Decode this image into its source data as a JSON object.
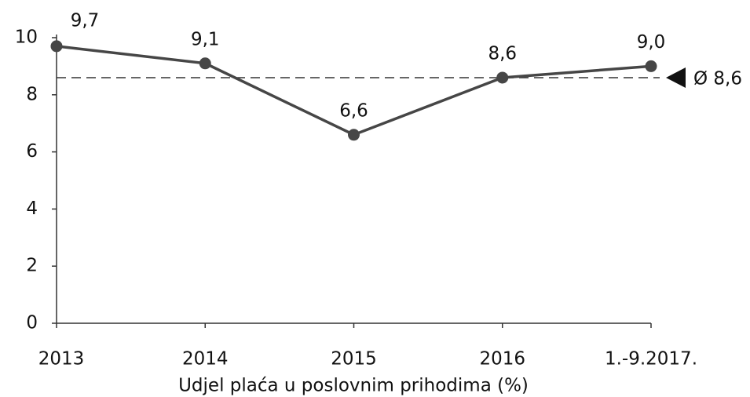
{
  "chart_data": {
    "type": "line",
    "xlabel": "Udjel plaća u poslovnim prihodima (%)",
    "categories": [
      "2013",
      "2014",
      "2015",
      "2016",
      "1.-9.2017."
    ],
    "series": [
      {
        "color": "#464646",
        "values": [
          9.7,
          9.1,
          6.6,
          8.6,
          9.0
        ],
        "value_labels": [
          "9,7",
          "9,1",
          "6,6",
          "8,6",
          "9,0"
        ]
      }
    ],
    "average": {
      "value": 8.6,
      "label": "Ø 8,6"
    },
    "ylim": [
      0,
      10
    ],
    "yticks": [
      0,
      2,
      4,
      6,
      8,
      10
    ],
    "grid": false
  }
}
